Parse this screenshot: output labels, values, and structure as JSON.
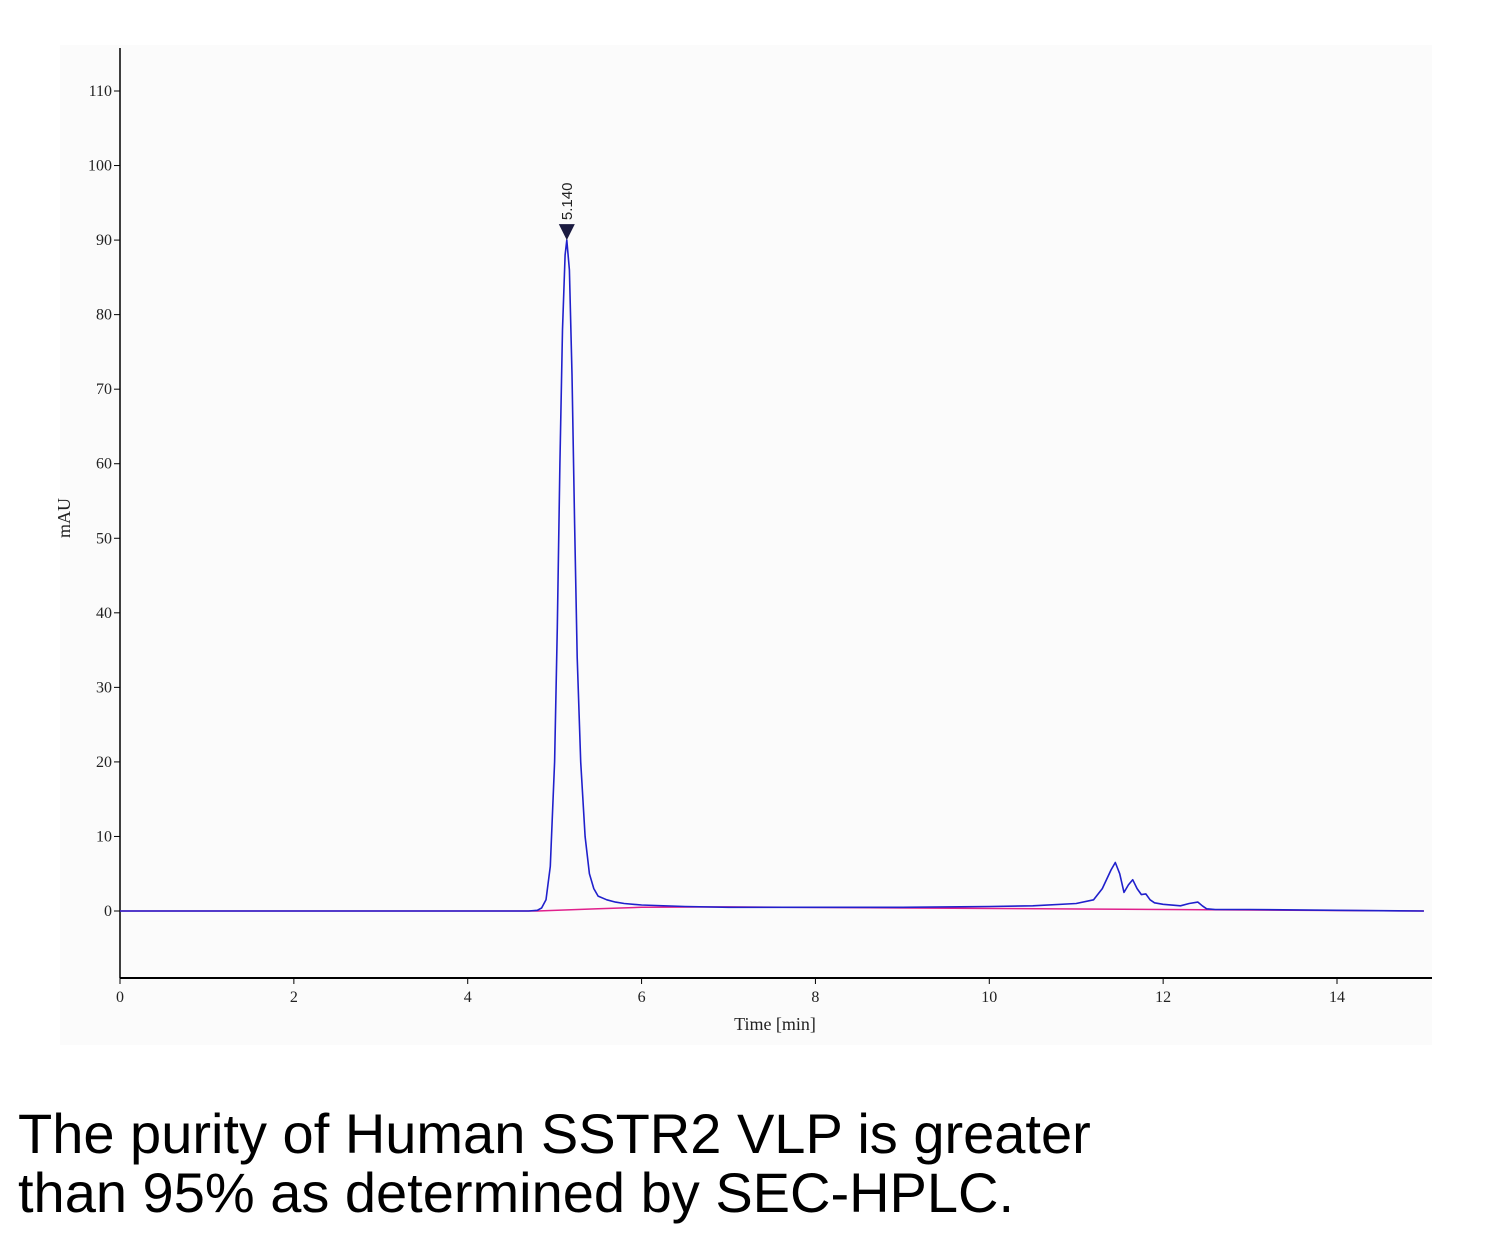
{
  "chart_data": {
    "type": "line",
    "title": "",
    "xlabel": "Time [min]",
    "ylabel": "mAU",
    "xlim": [
      0,
      15
    ],
    "ylim": [
      -9,
      115
    ],
    "x_ticks": [
      0,
      2,
      4,
      6,
      8,
      10,
      12,
      14
    ],
    "y_ticks": [
      0,
      10,
      20,
      30,
      40,
      50,
      60,
      70,
      80,
      90,
      100,
      110
    ],
    "grid": false,
    "peak_annotation": {
      "x": 5.14,
      "y": 90,
      "label": "5.140"
    },
    "colors": {
      "signal": "#2020cc",
      "baseline": "#e0208c",
      "plot_background": "#fbfbfb"
    },
    "series": [
      {
        "x": [
          0,
          1,
          2,
          3,
          4,
          4.7,
          4.8,
          4.85,
          4.9,
          4.95,
          5.0,
          5.03,
          5.06,
          5.09,
          5.12,
          5.14,
          5.17,
          5.2,
          5.23,
          5.26,
          5.3,
          5.35,
          5.4,
          5.45,
          5.5,
          5.6,
          5.7,
          5.8,
          6.0,
          6.5,
          7.0,
          8.0,
          9.0,
          10.0,
          10.5,
          11.0,
          11.2,
          11.3,
          11.4,
          11.45,
          11.5,
          11.55,
          11.6,
          11.65,
          11.7,
          11.75,
          11.8,
          11.85,
          11.9,
          12.0,
          12.2,
          12.3,
          12.4,
          12.45,
          12.5,
          12.6,
          12.8,
          13.0,
          14.0,
          15.0
        ],
        "values": [
          0,
          0,
          0,
          0,
          0,
          0,
          0.1,
          0.4,
          1.5,
          6,
          20,
          38,
          60,
          78,
          88,
          90,
          86,
          72,
          52,
          34,
          20,
          10,
          5,
          3,
          2,
          1.5,
          1.2,
          1.0,
          0.8,
          0.6,
          0.5,
          0.5,
          0.5,
          0.6,
          0.7,
          1.0,
          1.5,
          3.0,
          5.5,
          6.5,
          5.0,
          2.5,
          3.5,
          4.2,
          3.0,
          2.2,
          2.3,
          1.5,
          1.1,
          0.9,
          0.7,
          1.0,
          1.2,
          0.7,
          0.3,
          0.2,
          0.2,
          0.2,
          0.1,
          0.0
        ]
      },
      {
        "x": [
          0,
          4.8,
          5.5,
          6.0,
          7.0,
          15.0
        ],
        "values": [
          0,
          0,
          0.3,
          0.5,
          0.55,
          0.0
        ]
      }
    ]
  },
  "caption": {
    "line1": "The purity of Human SSTR2 VLP is greater",
    "line2": "than 95% as determined by SEC-HPLC."
  }
}
